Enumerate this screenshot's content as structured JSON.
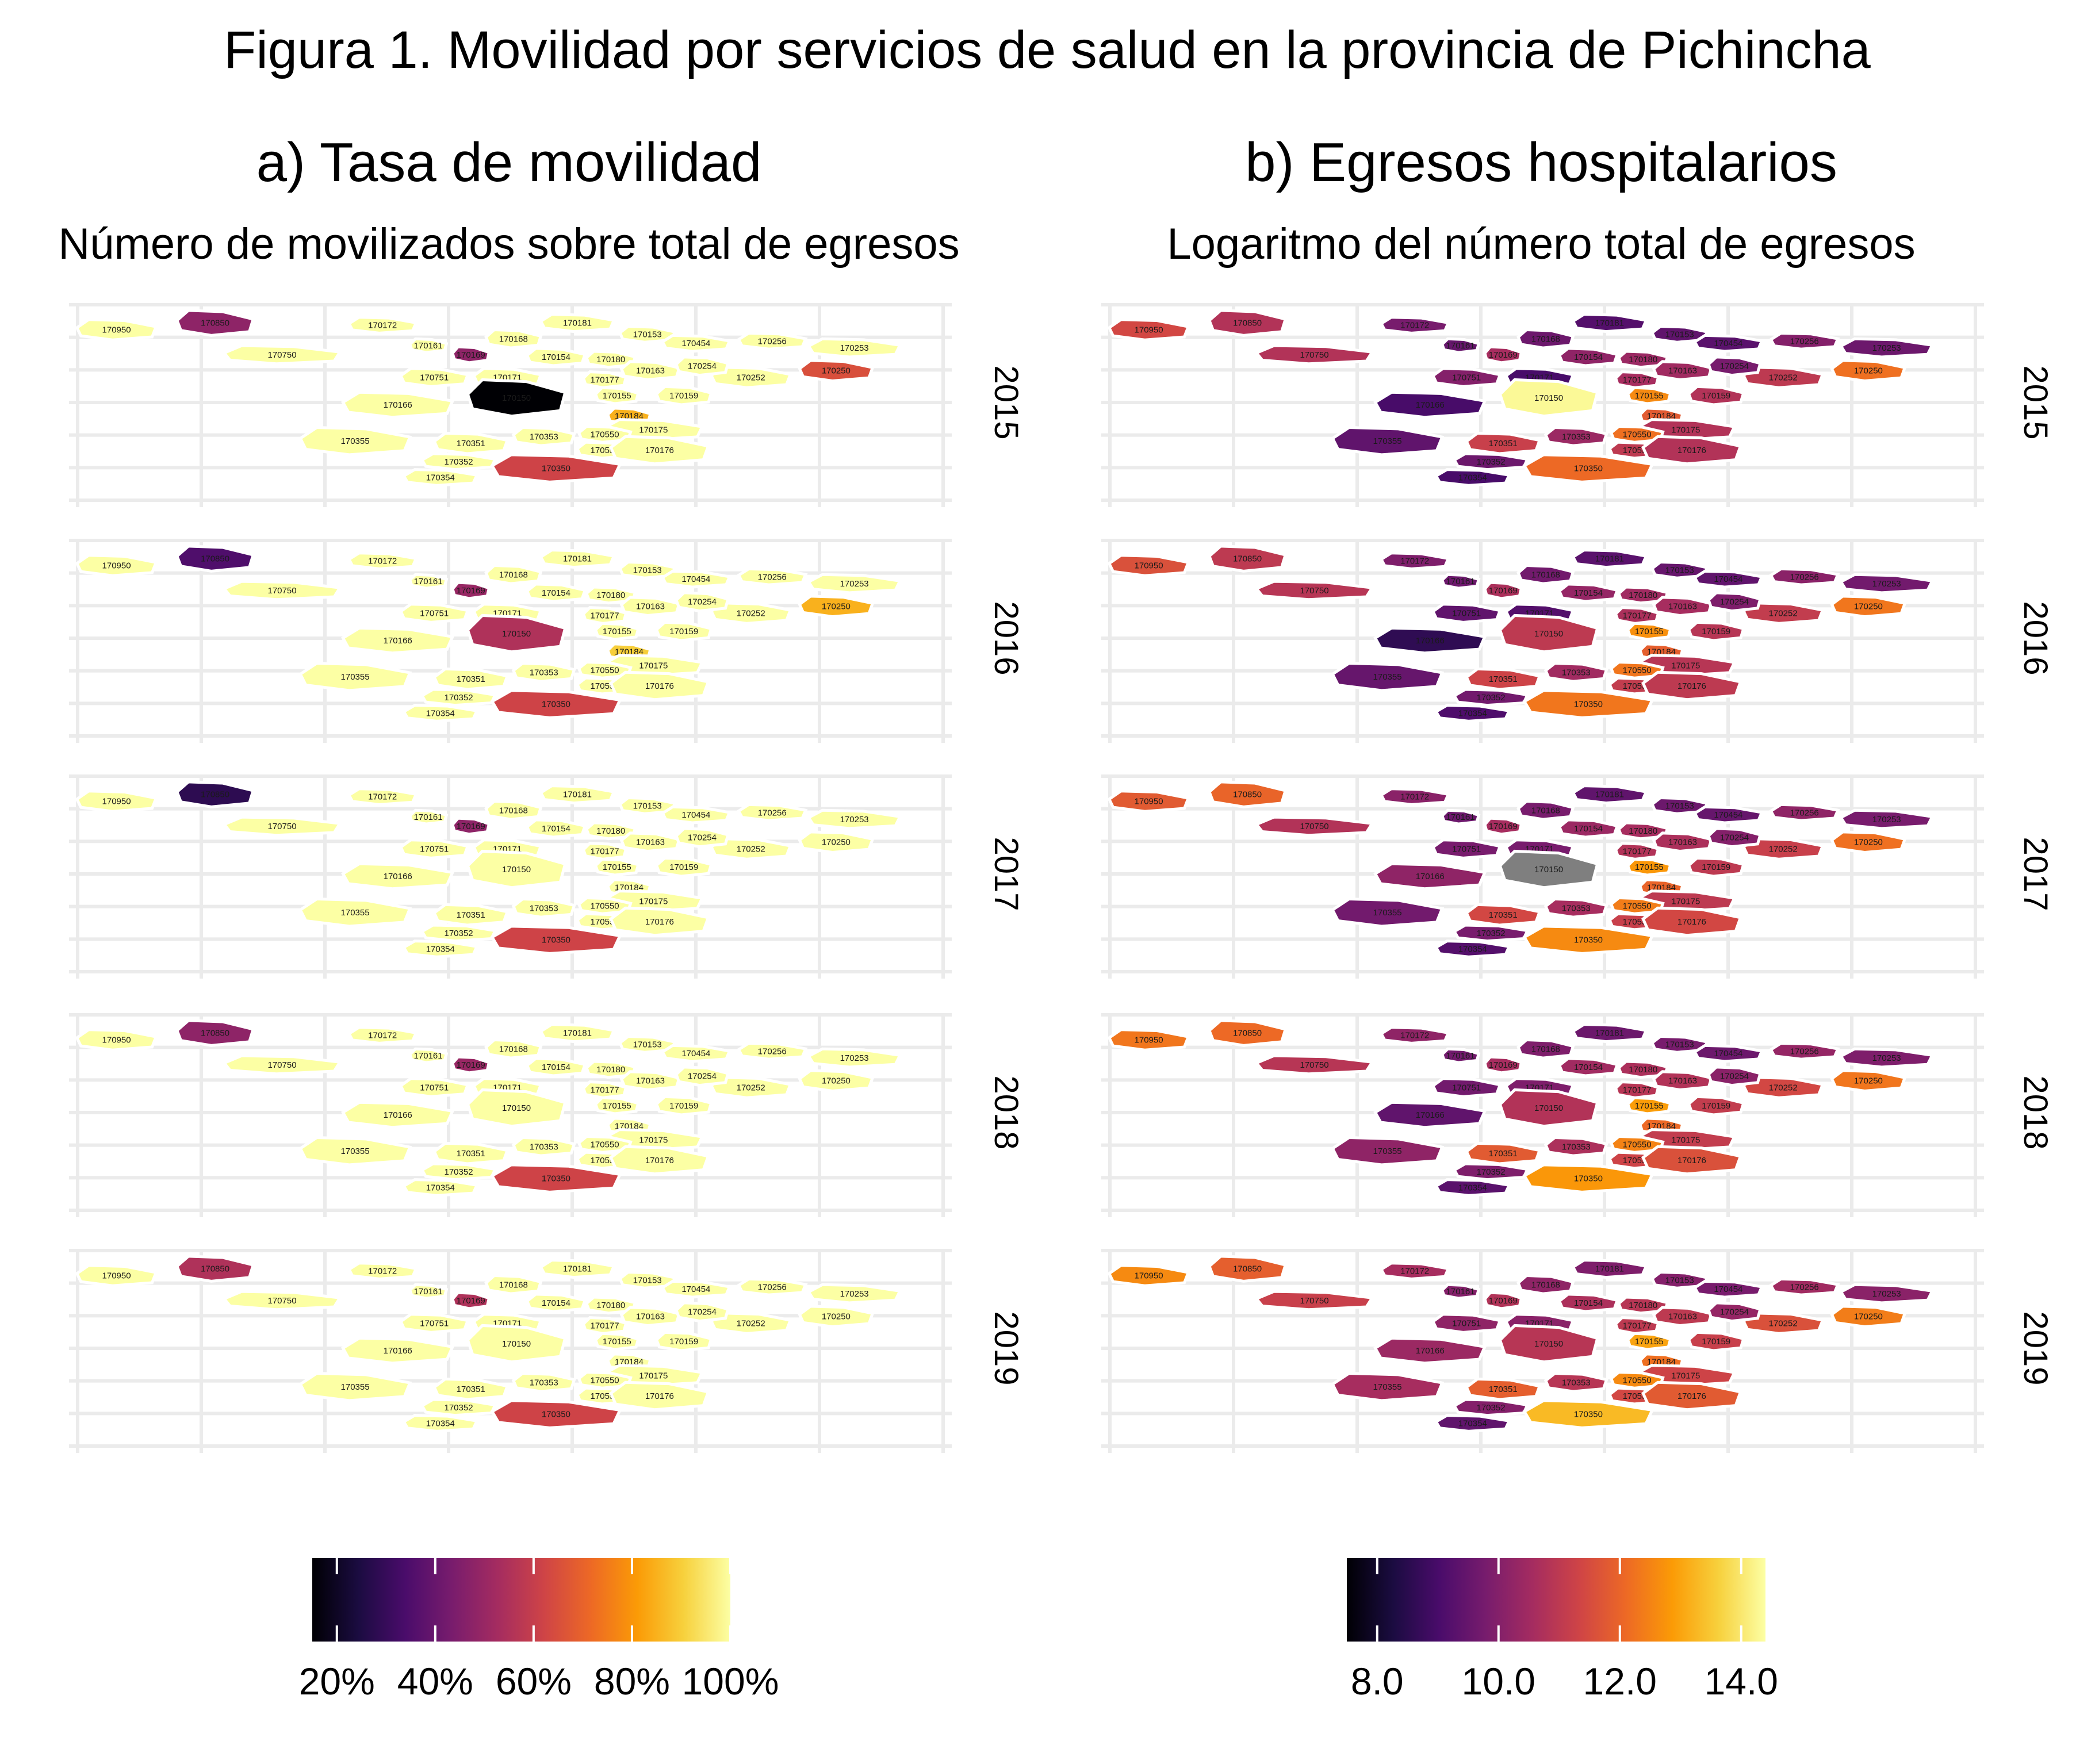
{
  "figure": {
    "title": "Figura 1. Movilidad por servicios de salud en la provincia de Pichincha"
  },
  "panels": [
    {
      "id": "a",
      "title": "a) Tasa de movilidad",
      "subtitle": "Número de movilizados sobre total de egresos",
      "legend": {
        "ticks": [
          "20%",
          "40%",
          "60%",
          "80%",
          "100%"
        ],
        "tick_values": [
          20,
          40,
          60,
          80,
          100
        ],
        "range": [
          15,
          100
        ],
        "palette": "inferno"
      }
    },
    {
      "id": "b",
      "title": "b) Egresos hospitalarios",
      "subtitle": "Logaritmo del número total de egresos",
      "legend": {
        "ticks": [
          "8.0",
          "10.0",
          "12.0",
          "14.0"
        ],
        "tick_values": [
          8,
          10,
          12,
          14
        ],
        "range": [
          7.5,
          14.4
        ],
        "palette": "inferno"
      }
    }
  ],
  "years": [
    "2015",
    "2016",
    "2017",
    "2018",
    "2019"
  ],
  "regions": [
    {
      "code": "170950",
      "vA": [
        100,
        100,
        100,
        100,
        100
      ],
      "vB": [
        11.4,
        11.6,
        11.8,
        12.3,
        12.6
      ]
    },
    {
      "code": "170850",
      "vA": [
        48,
        35,
        28,
        48,
        55
      ],
      "vB": [
        10.8,
        11.0,
        12.0,
        12.1,
        11.9
      ]
    },
    {
      "code": "170750",
      "vA": [
        100,
        100,
        100,
        100,
        100
      ],
      "vB": [
        10.8,
        10.9,
        10.8,
        10.9,
        11.2
      ]
    },
    {
      "code": "170172",
      "vA": [
        100,
        100,
        100,
        100,
        100
      ],
      "vB": [
        9.8,
        9.9,
        10.1,
        10.2,
        10.6
      ]
    },
    {
      "code": "170161",
      "vA": [
        100,
        100,
        100,
        100,
        100
      ],
      "vB": [
        9.5,
        9.6,
        9.6,
        9.7,
        10.0
      ]
    },
    {
      "code": "170169",
      "vA": [
        48,
        50,
        48,
        50,
        55
      ],
      "vB": [
        10.6,
        10.7,
        10.6,
        10.6,
        10.8
      ]
    },
    {
      "code": "170168",
      "vA": [
        100,
        100,
        100,
        100,
        100
      ],
      "vB": [
        9.6,
        9.7,
        9.8,
        9.9,
        10.2
      ]
    },
    {
      "code": "170181",
      "vA": [
        100,
        100,
        100,
        100,
        100
      ],
      "vB": [
        9.2,
        9.3,
        9.4,
        9.6,
        9.9
      ]
    },
    {
      "code": "170153",
      "vA": [
        100,
        100,
        100,
        100,
        100
      ],
      "vB": [
        9.4,
        9.5,
        9.6,
        9.8,
        10.0
      ]
    },
    {
      "code": "170454",
      "vA": [
        100,
        100,
        100,
        100,
        100
      ],
      "vB": [
        9.3,
        9.4,
        9.5,
        9.6,
        9.8
      ]
    },
    {
      "code": "170256",
      "vA": [
        100,
        100,
        100,
        100,
        100
      ],
      "vB": [
        10.0,
        10.1,
        10.2,
        10.3,
        10.5
      ]
    },
    {
      "code": "170253",
      "vA": [
        100,
        100,
        100,
        100,
        100
      ],
      "vB": [
        9.6,
        9.7,
        9.8,
        9.9,
        10.1
      ]
    },
    {
      "code": "170250",
      "vA": [
        65,
        85,
        100,
        100,
        100
      ],
      "vB": [
        12.2,
        12.3,
        12.2,
        12.3,
        12.4
      ]
    },
    {
      "code": "170252",
      "vA": [
        100,
        100,
        100,
        100,
        100
      ],
      "vB": [
        11.0,
        11.1,
        11.2,
        11.4,
        11.6
      ]
    },
    {
      "code": "170751",
      "vA": [
        100,
        100,
        100,
        100,
        100
      ],
      "vB": [
        10.0,
        9.4,
        9.8,
        9.7,
        10.2
      ]
    },
    {
      "code": "170171",
      "vA": [
        100,
        100,
        100,
        100,
        100
      ],
      "vB": [
        9.0,
        9.2,
        9.8,
        9.9,
        10.1
      ]
    },
    {
      "code": "170154",
      "vA": [
        100,
        100,
        100,
        100,
        100
      ],
      "vB": [
        10.2,
        10.3,
        10.4,
        10.5,
        10.7
      ]
    },
    {
      "code": "170180",
      "vA": [
        100,
        100,
        100,
        100,
        100
      ],
      "vB": [
        10.4,
        10.5,
        10.6,
        10.7,
        10.9
      ]
    },
    {
      "code": "170177",
      "vA": [
        100,
        100,
        100,
        100,
        100
      ],
      "vB": [
        10.6,
        10.7,
        10.8,
        10.9,
        11.0
      ]
    },
    {
      "code": "170163",
      "vA": [
        100,
        100,
        100,
        100,
        100
      ],
      "vB": [
        10.5,
        10.6,
        10.7,
        10.8,
        11.0
      ]
    },
    {
      "code": "170254",
      "vA": [
        100,
        100,
        100,
        100,
        100
      ],
      "vB": [
        9.8,
        9.9,
        10.0,
        10.1,
        10.3
      ]
    },
    {
      "code": "170166",
      "vA": [
        100,
        100,
        100,
        100,
        100
      ],
      "vB": [
        9.0,
        8.6,
        10.2,
        9.4,
        10.4
      ]
    },
    {
      "code": "170150",
      "vA": [
        15,
        55,
        100,
        100,
        100
      ],
      "vB": [
        14.3,
        11.0,
        null,
        10.8,
        10.9
      ]
    },
    {
      "code": "170155",
      "vA": [
        100,
        100,
        100,
        100,
        100
      ],
      "vB": [
        12.6,
        12.7,
        12.8,
        12.9,
        13.0
      ]
    },
    {
      "code": "170184",
      "vA": [
        85,
        90,
        100,
        100,
        100
      ],
      "vB": [
        11.8,
        11.9,
        12.0,
        12.1,
        12.2
      ]
    },
    {
      "code": "170159",
      "vA": [
        100,
        100,
        100,
        100,
        100
      ],
      "vB": [
        10.8,
        10.9,
        11.0,
        11.1,
        11.2
      ]
    },
    {
      "code": "170175",
      "vA": [
        100,
        100,
        100,
        100,
        100
      ],
      "vB": [
        10.8,
        10.9,
        11.0,
        11.1,
        11.3
      ]
    },
    {
      "code": "170355",
      "vA": [
        100,
        100,
        100,
        100,
        100
      ],
      "vB": [
        9.4,
        9.5,
        9.7,
        10.2,
        10.6
      ]
    },
    {
      "code": "170351",
      "vA": [
        100,
        100,
        100,
        100,
        100
      ],
      "vB": [
        11.2,
        11.3,
        11.4,
        11.8,
        11.9
      ]
    },
    {
      "code": "170353",
      "vA": [
        100,
        100,
        100,
        100,
        100
      ],
      "vB": [
        10.4,
        10.5,
        10.6,
        10.7,
        10.9
      ]
    },
    {
      "code": "170552",
      "vA": [
        100,
        100,
        100,
        100,
        100
      ],
      "vB": [
        11.0,
        11.1,
        11.2,
        11.3,
        11.4
      ]
    },
    {
      "code": "170550",
      "vA": [
        100,
        100,
        100,
        100,
        100
      ],
      "vB": [
        12.2,
        12.3,
        12.4,
        12.5,
        12.6
      ]
    },
    {
      "code": "170176",
      "vA": [
        100,
        100,
        100,
        100,
        100
      ],
      "vB": [
        10.8,
        11.0,
        11.4,
        11.6,
        11.8
      ]
    },
    {
      "code": "170352",
      "vA": [
        100,
        100,
        100,
        100,
        100
      ],
      "vB": [
        9.6,
        9.7,
        9.8,
        9.9,
        10.0
      ]
    },
    {
      "code": "170354",
      "vA": [
        100,
        100,
        100,
        100,
        100
      ],
      "vB": [
        9.0,
        9.1,
        9.2,
        9.3,
        9.4
      ]
    },
    {
      "code": "170350",
      "vA": [
        62,
        62,
        62,
        62,
        62
      ],
      "vB": [
        12.1,
        12.3,
        12.6,
        12.8,
        13.3
      ]
    }
  ]
}
